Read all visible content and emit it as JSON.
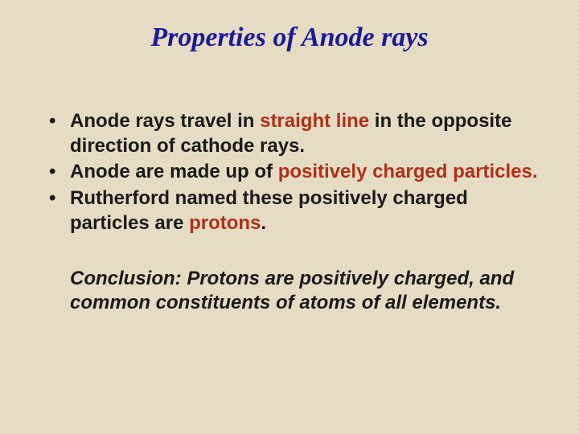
{
  "slide": {
    "title": "Properties of  Anode  rays",
    "background_color": "#e8dfc8",
    "title_color": "#1a1a99",
    "body_text_color": "#1a1a1a",
    "highlight_color": "#b03018",
    "title_fontsize": 34,
    "body_fontsize": 24,
    "title_font": "Times New Roman italic bold",
    "body_font": "Arial bold",
    "bullets": [
      {
        "pre": "Anode rays travel in ",
        "hl": "straight line ",
        "post": "in the opposite direction of  cathode rays."
      },
      {
        "pre": "Anode are made up of ",
        "hl": "positively charged particles.",
        "post": ""
      },
      {
        "pre": "Rutherford named these positively charged particles are ",
        "hl": "protons",
        "post": "."
      }
    ],
    "conclusion": "Conclusion: Protons are positively charged, and common constituents of atoms of all elements."
  }
}
